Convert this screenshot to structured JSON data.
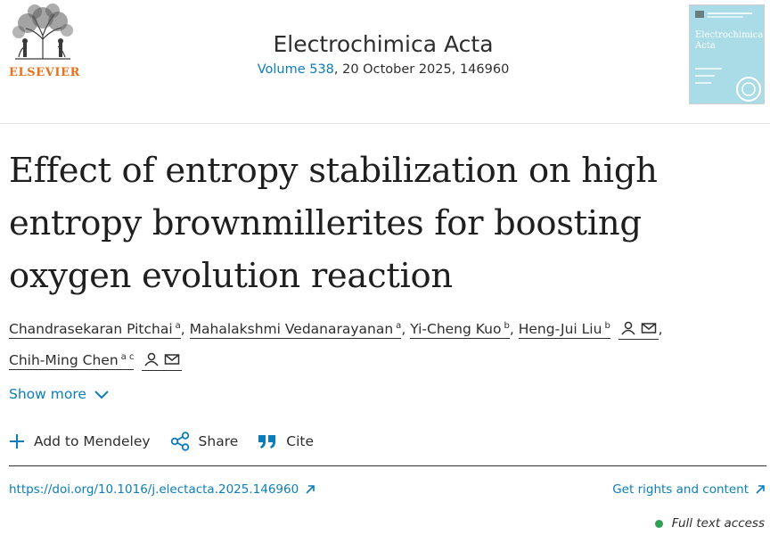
{
  "publisher": {
    "logo_text": "ELSEVIER"
  },
  "journal": {
    "name": "Electrochimica Acta",
    "volume_link": "Volume 538",
    "issue_details": ", 20 October 2025, 146960",
    "cover_title": "Electrochimica Acta"
  },
  "article": {
    "title": "Effect of entropy stabilization on high entropy brownmillerites for boosting oxygen evolution reaction",
    "authors": [
      {
        "name": "Chandrasekaran Pitchai",
        "affil": "a"
      },
      {
        "name": "Mahalakshmi Vedanarayanan",
        "affil": "a"
      },
      {
        "name": "Yi-Cheng Kuo",
        "affil": "b"
      },
      {
        "name": "Heng-Jui Liu",
        "affil": "b"
      },
      {
        "name": "Chih-Ming Chen",
        "affil": "a c"
      }
    ],
    "separator": ","
  },
  "show_more": {
    "label": "Show more"
  },
  "actions": {
    "mendeley": "Add to Mendeley",
    "share": "Share",
    "cite": "Cite"
  },
  "links": {
    "doi": "https://doi.org/10.1016/j.electacta.2025.146960",
    "rights": "Get rights and content",
    "access": "Full text access"
  },
  "colors": {
    "link": "#0c7dbb",
    "elsevier_orange": "#e9711c",
    "access_green": "#2e9f53",
    "cover_bg": "#a9dce6"
  },
  "icons": [
    "elsevier-tree-logo",
    "person-icon",
    "envelope-icon",
    "chevron-down-icon",
    "plus-icon",
    "share-icon",
    "quote-icon",
    "external-arrow-icon"
  ]
}
